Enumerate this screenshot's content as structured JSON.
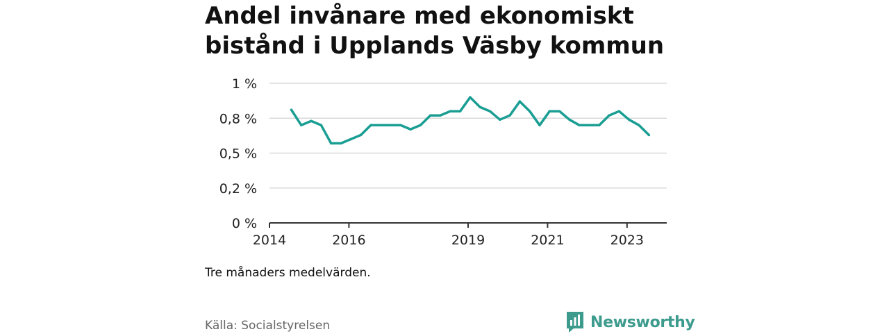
{
  "title": "Andel invånare med ekonomiskt bistånd i Upplands Väsby kommun",
  "note": "Tre månaders medelvärden.",
  "source": "Källa: Socialstyrelsen",
  "brand": "Newsworthy",
  "colors": {
    "line": "#1a9e93",
    "grid": "#d9d9d9",
    "axis": "#333333",
    "brand": "#3d9b8e"
  },
  "chart_data": {
    "type": "line",
    "title": "Andel invånare med ekonomiskt bistånd i Upplands Väsby kommun",
    "xlabel": "",
    "ylabel": "",
    "xlim": [
      2014.0,
      2024.0
    ],
    "ylim": [
      0,
      1
    ],
    "grid": true,
    "x_ticks": [
      {
        "value": 2014.0,
        "label": "2014"
      },
      {
        "value": 2016.0,
        "label": "2016"
      },
      {
        "value": 2019.0,
        "label": "2019"
      },
      {
        "value": 2021.0,
        "label": "2021"
      },
      {
        "value": 2023.0,
        "label": "2023"
      }
    ],
    "y_ticks": [
      {
        "value": 0,
        "label": "0 %"
      },
      {
        "value": 0.25,
        "label": "0,2 %"
      },
      {
        "value": 0.5,
        "label": "0,5 %"
      },
      {
        "value": 0.75,
        "label": "0,8 %"
      },
      {
        "value": 1.0,
        "label": "1 %"
      }
    ],
    "series": [
      {
        "x": [
          2014.55,
          2014.8,
          2015.05,
          2015.3,
          2015.55,
          2015.8,
          2016.05,
          2016.3,
          2016.55,
          2016.8,
          2017.05,
          2017.3,
          2017.55,
          2017.8,
          2018.05,
          2018.3,
          2018.55,
          2018.8,
          2019.05,
          2019.3,
          2019.55,
          2019.8,
          2020.05,
          2020.3,
          2020.55,
          2020.8,
          2021.05,
          2021.3,
          2021.55,
          2021.8,
          2022.05,
          2022.3,
          2022.55,
          2022.8,
          2023.05,
          2023.3,
          2023.55
        ],
        "values": [
          0.81,
          0.7,
          0.73,
          0.7,
          0.57,
          0.57,
          0.6,
          0.63,
          0.7,
          0.7,
          0.7,
          0.7,
          0.67,
          0.7,
          0.77,
          0.77,
          0.8,
          0.8,
          0.9,
          0.83,
          0.8,
          0.74,
          0.77,
          0.87,
          0.8,
          0.7,
          0.8,
          0.8,
          0.74,
          0.7,
          0.7,
          0.7,
          0.77,
          0.8,
          0.74,
          0.7,
          0.63
        ]
      }
    ]
  }
}
